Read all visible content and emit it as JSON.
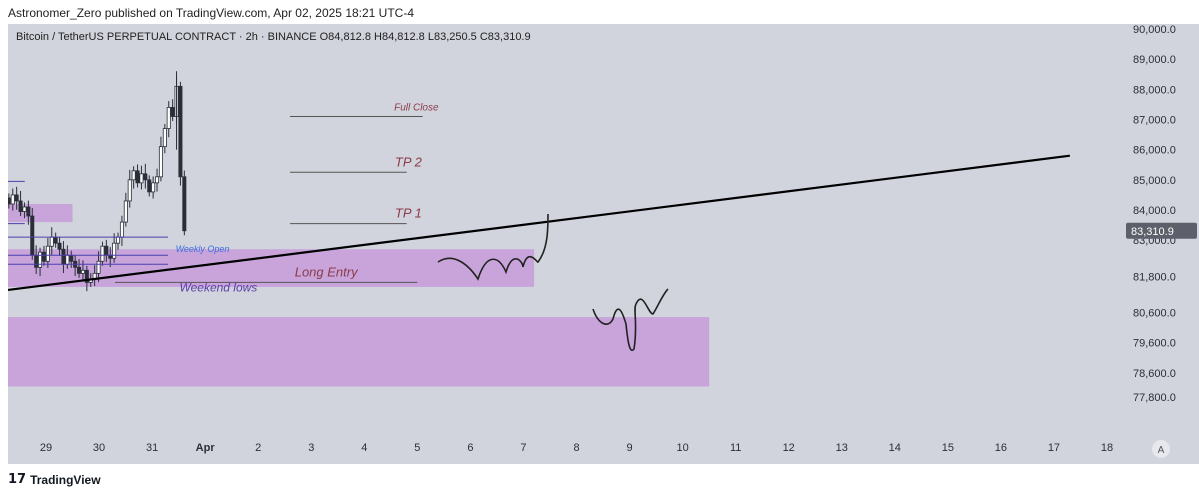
{
  "header": {
    "publisher_line": "Astronomer_Zero published on TradingView.com, Apr 02, 2025 18:21 UTC-4"
  },
  "symbol_line": "Bitcoin / TetherUS PERPETUAL CONTRACT · 2h · BINANCE  O84,812.8  H84,812.8  L83,250.5  C83,310.9",
  "footer": {
    "brand": "TradingView"
  },
  "colors": {
    "chart_bg": "#d1d4dc",
    "zone": "#c79bdb",
    "annotation": "#8b3a4a",
    "price_tag": "#5d606b"
  },
  "chart_data": {
    "type": "candlestick",
    "y_axis_labels": [
      "90,000.0",
      "89,000.0",
      "88,000.0",
      "87,000.0",
      "86,000.0",
      "85,000.0",
      "84,000.0",
      "83,000.0",
      "81,800.0",
      "80,600.0",
      "79,600.0",
      "78,600.0",
      "77,800.0"
    ],
    "y_axis_values": [
      90000,
      89000,
      88000,
      87000,
      86000,
      85000,
      84000,
      83000,
      81800,
      80600,
      79600,
      78600,
      77800
    ],
    "x_axis_labels": [
      "29",
      "30",
      "31",
      "Apr",
      "2",
      "3",
      "4",
      "5",
      "6",
      "7",
      "8",
      "9",
      "10",
      "11",
      "12",
      "13",
      "14",
      "15",
      "16",
      "17",
      "18"
    ],
    "x_axis_days": [
      0,
      1,
      2,
      3,
      4,
      5,
      6,
      7,
      8,
      9,
      10,
      11,
      12,
      13,
      14,
      15,
      16,
      17,
      18,
      19,
      20
    ],
    "x_axis_corner_label": "A",
    "last_price_label": "83,310.9",
    "last_price": 83310.9,
    "horizontal_levels": [
      {
        "label": "Full Close",
        "price": 87100,
        "from_day": 4.6,
        "to_day": 7.1
      },
      {
        "label": "TP 2",
        "price": 85250,
        "from_day": 4.6,
        "to_day": 6.8
      },
      {
        "label": "TP 1",
        "price": 83550,
        "from_day": 4.6,
        "to_day": 6.8
      },
      {
        "label": "Long Entry",
        "price": 81600,
        "from_day": 1.3,
        "to_day": 7.0
      }
    ],
    "annotations": [
      {
        "label": "Weekend lows",
        "day": 3.25,
        "price": 81300
      },
      {
        "label": "Weekly Open",
        "day": 2.95,
        "price": 82600
      }
    ],
    "zones": [
      {
        "from_day": -0.75,
        "to_day": 9.2,
        "top": 82700,
        "bottom": 81450
      },
      {
        "from_day": -0.75,
        "to_day": 12.5,
        "top": 80450,
        "bottom": 78150
      },
      {
        "from_day": -0.75,
        "to_day": 0.5,
        "top": 84200,
        "bottom": 83600
      }
    ],
    "trendline": {
      "from_day": -0.75,
      "from_price": 81350,
      "to_day": 19.3,
      "to_price": 85800
    },
    "candles_close": [
      84200,
      84500,
      84300,
      83950,
      84100,
      83800,
      82500,
      82100,
      82600,
      82300,
      82800,
      83100,
      82900,
      82700,
      82200,
      82500,
      82300,
      82100,
      81900,
      82000,
      81600,
      81700,
      81900,
      82300,
      82800,
      82500,
      82400,
      82900,
      83100,
      83600,
      84300,
      85000,
      85300,
      84900,
      85200,
      85000,
      84600,
      84900,
      85100,
      86100,
      86700,
      87400,
      87100,
      88100,
      85100,
      83310.9
    ],
    "candles_day_start": -0.7,
    "candles_day_step": 0.0735
  }
}
